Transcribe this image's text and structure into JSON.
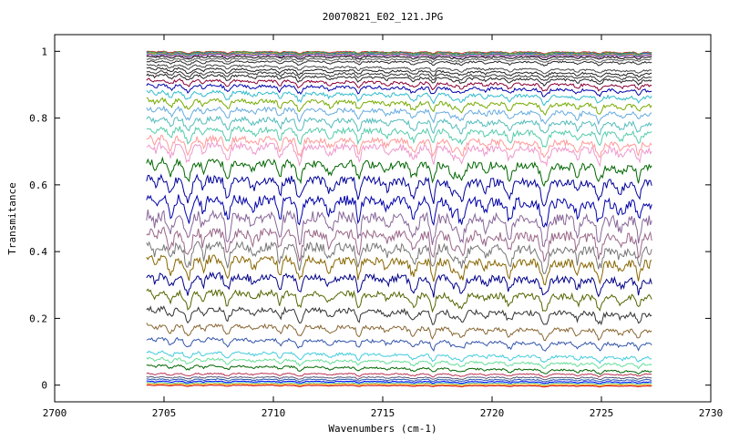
{
  "chart_data": {
    "type": "line",
    "title": "20070821_E02_121.JPG",
    "xlabel": "Wavenumbers (cm-1)",
    "ylabel": "Transmitance",
    "xlim": [
      2700,
      2730
    ],
    "ylim": [
      -0.05,
      1.05
    ],
    "xticks": [
      2700,
      2705,
      2710,
      2715,
      2720,
      2725,
      2730
    ],
    "xtick_labels": [
      "2700",
      "2705",
      "2710",
      "2715",
      "2720",
      "2725",
      "2730"
    ],
    "yticks": [
      0,
      0.2,
      0.4,
      0.6,
      0.8,
      1
    ],
    "ytick_labels": [
      "0",
      "0.2",
      "0.4",
      "0.6",
      "0.8",
      "1"
    ],
    "x_range": [
      2704.2,
      2727.3
    ],
    "grid": false,
    "legend": "none",
    "absorption_lines_cm1": [
      2704.6,
      2705.3,
      2706.1,
      2706.8,
      2707.9,
      2709.1,
      2710.3,
      2711.2,
      2712.6,
      2713.9,
      2715.2,
      2716.4,
      2717.3,
      2718.2,
      2718.6,
      2719.7,
      2720.8,
      2722.4,
      2723.9,
      2724.9,
      2725.9,
      2726.7
    ],
    "series": [
      {
        "baseline": 1.0,
        "color": "#cc3333"
      },
      {
        "baseline": 0.998,
        "color": "#33aa33"
      },
      {
        "baseline": 0.996,
        "color": "#3355cc"
      },
      {
        "baseline": 0.994,
        "color": "#cc9922"
      },
      {
        "baseline": 0.992,
        "color": "#22aaaa"
      },
      {
        "baseline": 0.99,
        "color": "#aa33aa"
      },
      {
        "baseline": 0.985,
        "color": "#000000"
      },
      {
        "baseline": 0.978,
        "color": "#555555"
      },
      {
        "baseline": 0.97,
        "color": "#2a2a2a"
      },
      {
        "baseline": 0.96,
        "color": "#444444"
      },
      {
        "baseline": 0.95,
        "color": "#1f1f1f"
      },
      {
        "baseline": 0.94,
        "color": "#333333"
      },
      {
        "baseline": 0.93,
        "color": "#222222"
      },
      {
        "baseline": 0.915,
        "color": "#880033"
      },
      {
        "baseline": 0.9,
        "color": "#0000aa"
      },
      {
        "baseline": 0.88,
        "color": "#33bbcc"
      },
      {
        "baseline": 0.855,
        "color": "#77aa00"
      },
      {
        "baseline": 0.83,
        "color": "#66aadd"
      },
      {
        "baseline": 0.8,
        "color": "#55bbbb"
      },
      {
        "baseline": 0.77,
        "color": "#55ccaa"
      },
      {
        "baseline": 0.74,
        "color": "#ff9999"
      },
      {
        "baseline": 0.72,
        "color": "#ee99cc"
      },
      {
        "baseline": 0.67,
        "color": "#006600"
      },
      {
        "baseline": 0.62,
        "color": "#000099"
      },
      {
        "baseline": 0.56,
        "color": "#0000aa"
      },
      {
        "baseline": 0.51,
        "color": "#886699"
      },
      {
        "baseline": 0.46,
        "color": "#996688"
      },
      {
        "baseline": 0.42,
        "color": "#777777"
      },
      {
        "baseline": 0.38,
        "color": "#886600"
      },
      {
        "baseline": 0.33,
        "color": "#000088"
      },
      {
        "baseline": 0.28,
        "color": "#556600"
      },
      {
        "baseline": 0.23,
        "color": "#333333"
      },
      {
        "baseline": 0.18,
        "color": "#886633"
      },
      {
        "baseline": 0.14,
        "color": "#3355aa"
      },
      {
        "baseline": 0.1,
        "color": "#44ccdd"
      },
      {
        "baseline": 0.08,
        "color": "#66dd99"
      },
      {
        "baseline": 0.06,
        "color": "#006600"
      },
      {
        "baseline": 0.035,
        "color": "#bb3355"
      },
      {
        "baseline": 0.025,
        "color": "#555577"
      },
      {
        "baseline": 0.018,
        "color": "#2255aa"
      },
      {
        "baseline": 0.012,
        "color": "#0000ff"
      },
      {
        "baseline": 0.008,
        "color": "#44bbbb"
      },
      {
        "baseline": 0.004,
        "color": "#ffaa00"
      },
      {
        "baseline": 0.0,
        "color": "#cc0000"
      }
    ]
  }
}
